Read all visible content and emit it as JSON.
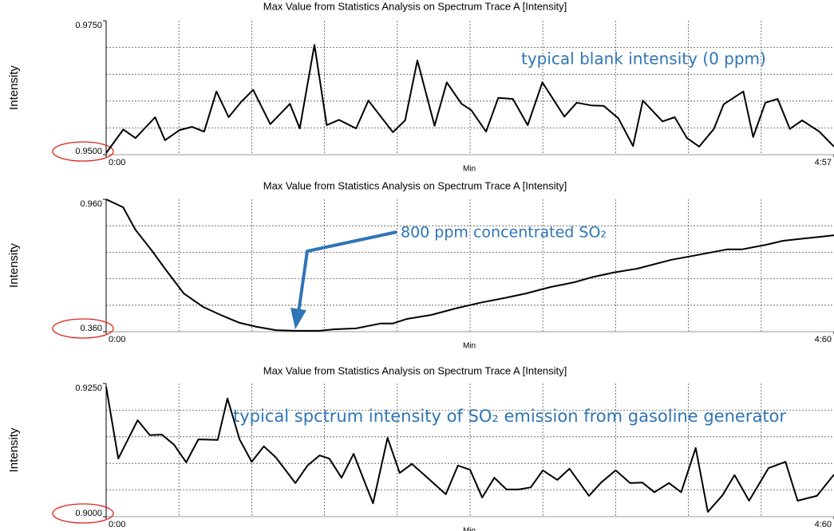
{
  "chart_data": [
    {
      "type": "line",
      "title": "Max Value from Statistics Analysis on Spectrum Trace A [Intensity]",
      "ylabel": "Intensity",
      "xlabel": "Min",
      "color": "#000000",
      "grid": true,
      "annotation": "typical blank intensity (0 ppm)",
      "xlim": [
        0,
        297
      ],
      "xticks": [
        {
          "value": 0,
          "label": "0:00"
        },
        {
          "value": 297,
          "label": "4:57"
        }
      ],
      "ylim": [
        0.95,
        0.975
      ],
      "yticks": [
        {
          "value": 0.975,
          "label": "0.9750"
        },
        {
          "value": 0.95,
          "label": "0.9500"
        }
      ],
      "x": [
        0,
        7,
        12,
        20,
        24,
        30,
        35,
        40,
        45,
        50,
        55,
        60,
        67,
        75,
        79,
        85,
        90,
        95,
        102,
        107,
        117,
        122,
        127,
        134,
        139,
        145,
        149,
        155,
        160,
        166,
        172,
        178,
        187,
        192,
        198,
        203,
        209,
        215,
        219,
        227,
        232,
        237,
        242,
        248,
        252,
        260,
        264,
        269,
        274,
        279,
        284,
        291,
        297
      ],
      "values": [
        0.9503,
        0.9547,
        0.9531,
        0.957,
        0.9527,
        0.9546,
        0.9552,
        0.9543,
        0.9618,
        0.957,
        0.9598,
        0.9621,
        0.9557,
        0.9595,
        0.9549,
        0.9705,
        0.9555,
        0.9565,
        0.9549,
        0.9601,
        0.9542,
        0.9564,
        0.9676,
        0.9554,
        0.9635,
        0.9595,
        0.9583,
        0.9543,
        0.9606,
        0.9604,
        0.9555,
        0.9635,
        0.9571,
        0.9597,
        0.9592,
        0.9591,
        0.9568,
        0.9516,
        0.9601,
        0.9562,
        0.957,
        0.9531,
        0.9515,
        0.9548,
        0.9594,
        0.9618,
        0.9533,
        0.9597,
        0.9604,
        0.9548,
        0.9564,
        0.9543,
        0.9515
      ]
    },
    {
      "type": "line",
      "title": "Max Value from Statistics Analysis on Spectrum Trace A [Intensity]",
      "ylabel": "Intensity",
      "xlabel": "Min",
      "color": "#000000",
      "grid": true,
      "annotation": "800 ppm concentrated SO₂",
      "xlim": [
        0,
        300
      ],
      "xticks": [
        {
          "value": 0,
          "label": "0:00"
        },
        {
          "value": 300,
          "label": "4:60"
        }
      ],
      "ylim": [
        0.36,
        0.96
      ],
      "yticks": [
        {
          "value": 0.96,
          "label": "0.960"
        },
        {
          "value": 0.36,
          "label": "0.360"
        }
      ],
      "x": [
        0,
        7,
        12,
        19,
        24,
        32,
        40,
        48,
        55,
        62,
        70,
        78,
        88,
        94,
        103,
        113,
        118,
        124,
        134,
        144,
        154,
        164,
        173,
        183,
        193,
        200,
        209,
        219,
        233,
        242,
        256,
        262,
        272,
        279,
        288,
        300
      ],
      "values": [
        0.96,
        0.924,
        0.823,
        0.725,
        0.649,
        0.533,
        0.472,
        0.432,
        0.4,
        0.382,
        0.367,
        0.364,
        0.364,
        0.371,
        0.375,
        0.397,
        0.397,
        0.418,
        0.436,
        0.465,
        0.491,
        0.512,
        0.533,
        0.562,
        0.584,
        0.606,
        0.628,
        0.646,
        0.686,
        0.704,
        0.733,
        0.733,
        0.754,
        0.772,
        0.783,
        0.797
      ]
    },
    {
      "type": "line",
      "title": "Max Value from Statistics Analysis on Spectrum Trace A [Intensity]",
      "ylabel": "Intensity",
      "xlabel": "Min",
      "color": "#000000",
      "grid": true,
      "annotation": "typical spctrum intensity of SO₂ emission from gasoline generator",
      "xlim": [
        0,
        300
      ],
      "xticks": [
        {
          "value": 0,
          "label": "0:00"
        },
        {
          "value": 300,
          "label": "4:60"
        }
      ],
      "ylim": [
        0.9,
        0.925
      ],
      "yticks": [
        {
          "value": 0.925,
          "label": "0.9250"
        },
        {
          "value": 0.9,
          "label": "0.9000"
        }
      ],
      "x": [
        0,
        5,
        13,
        18,
        23,
        28,
        33,
        38,
        46,
        50,
        55,
        60,
        65,
        70,
        78,
        83,
        88,
        92,
        97,
        102,
        110,
        116,
        121,
        126,
        131,
        140,
        145,
        150,
        155,
        160,
        165,
        170,
        175,
        180,
        186,
        191,
        199,
        204,
        210,
        216,
        221,
        226,
        232,
        237,
        243,
        248,
        254,
        259,
        265,
        273,
        280,
        285,
        293,
        300
      ],
      "values": [
        0.9244,
        0.9109,
        0.9181,
        0.9153,
        0.9154,
        0.9135,
        0.9102,
        0.9145,
        0.9144,
        0.9222,
        0.9145,
        0.9103,
        0.9132,
        0.9111,
        0.9063,
        0.9096,
        0.9115,
        0.9109,
        0.9073,
        0.9118,
        0.9025,
        0.9148,
        0.9082,
        0.9099,
        0.9079,
        0.9042,
        0.9096,
        0.9088,
        0.9036,
        0.9073,
        0.9051,
        0.9051,
        0.9055,
        0.9087,
        0.9069,
        0.909,
        0.9039,
        0.9064,
        0.9087,
        0.9063,
        0.9064,
        0.9046,
        0.9063,
        0.9046,
        0.9129,
        0.9009,
        0.904,
        0.9078,
        0.903,
        0.9091,
        0.9103,
        0.903,
        0.9039,
        0.9079
      ]
    }
  ]
}
